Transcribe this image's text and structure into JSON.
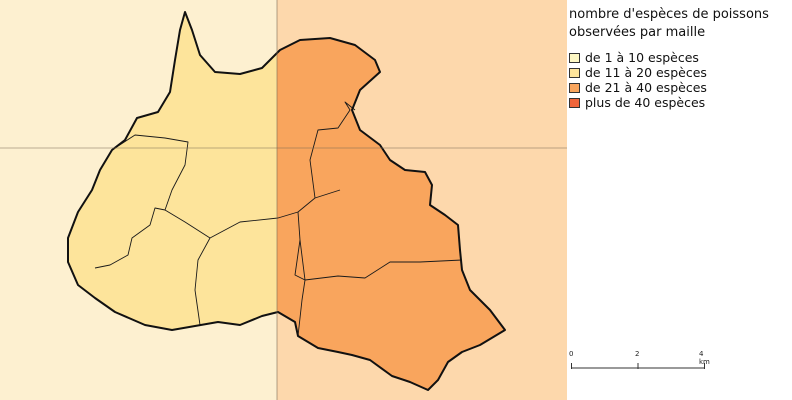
{
  "legend": {
    "title_line1": "nombre d'espèces de poissons",
    "title_line2": "observées par maille",
    "items": [
      {
        "label": "de 1 à 10 espèces",
        "color": "#fdf7c3"
      },
      {
        "label": "de 11 à 20 espèces",
        "color": "#fde49b"
      },
      {
        "label": "de 21 à 40 espèces",
        "color": "#f9a55d"
      },
      {
        "label": "plus de 40 espèces",
        "color": "#f0653b"
      }
    ]
  },
  "scale": {
    "labels": [
      "0",
      "2",
      "4 km"
    ]
  },
  "colors": {
    "grid_cell_low": "#fdf0d0",
    "grid_cell_mid": "#fdd8ac",
    "region_low": "#fde49b",
    "region_mid": "#f9a55d"
  }
}
